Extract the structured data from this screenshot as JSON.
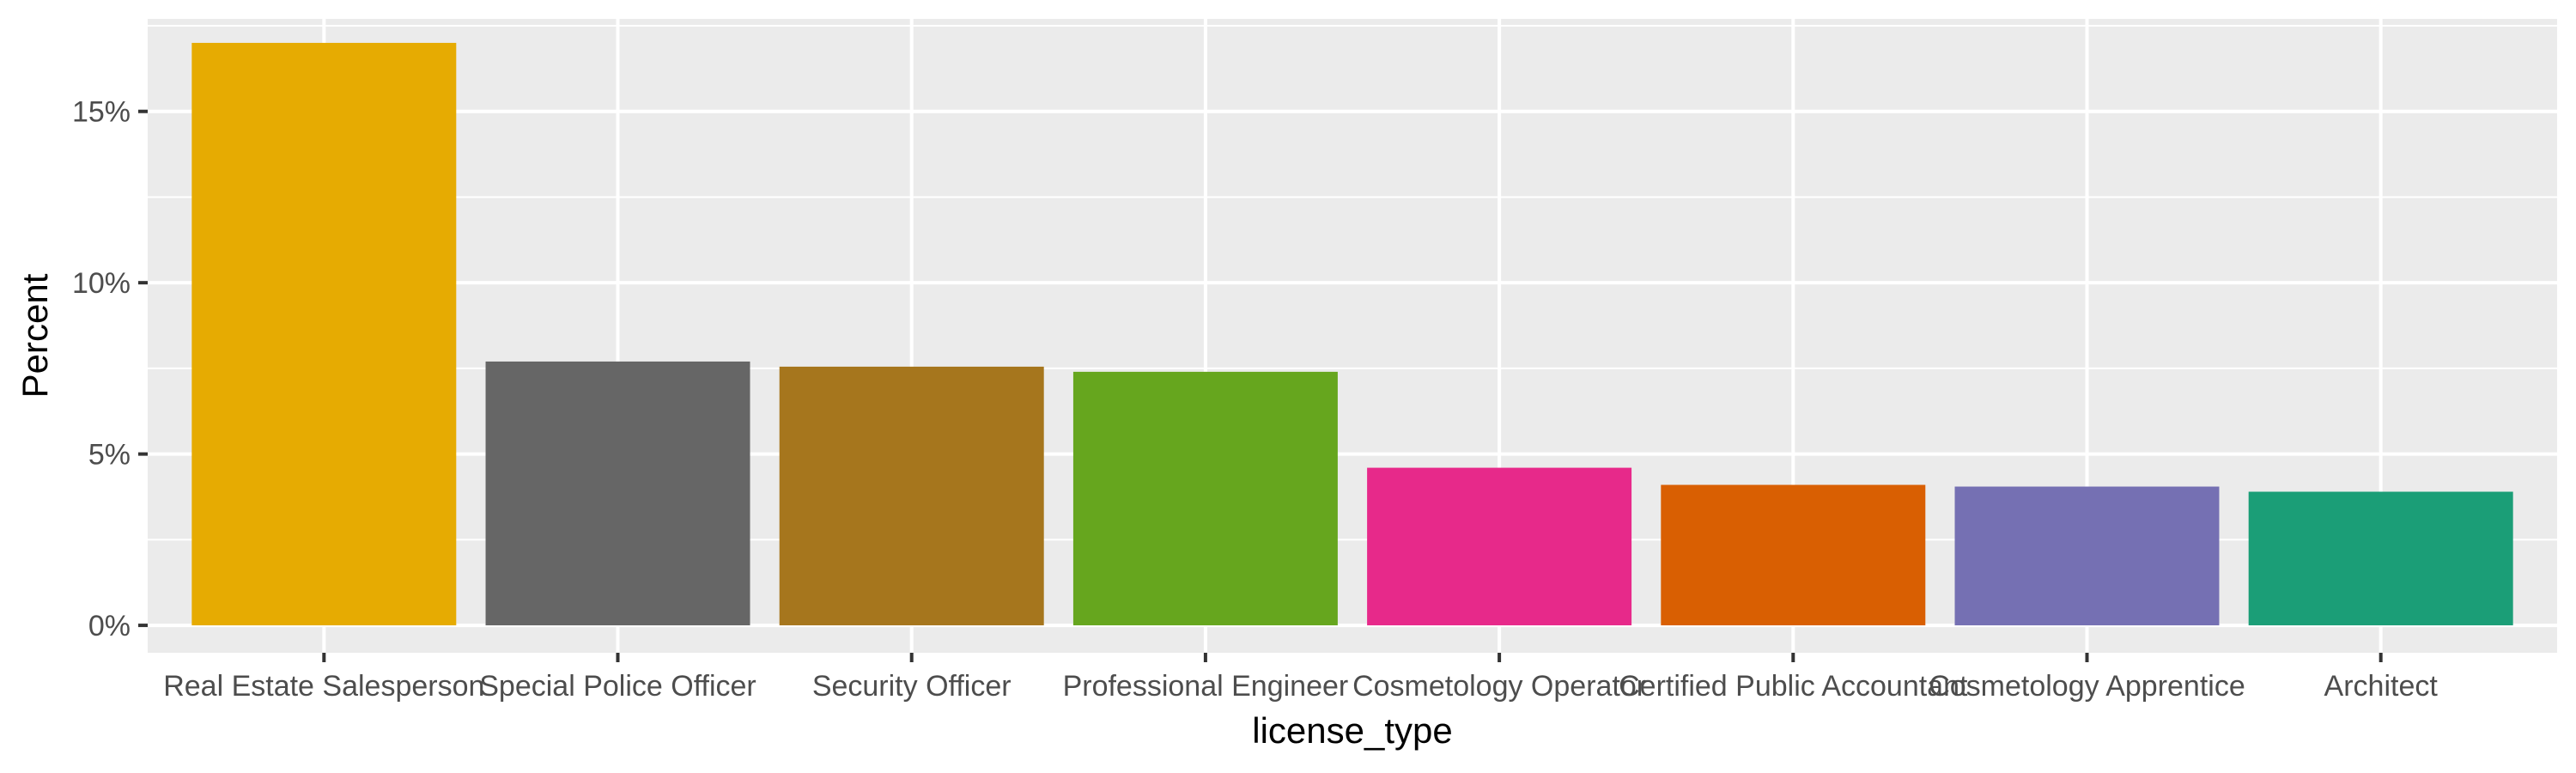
{
  "chart_data": {
    "type": "bar",
    "xlabel": "license_type",
    "ylabel": "Percent",
    "ylim": [
      -0.008,
      0.177
    ],
    "yticks": [
      0,
      0.05,
      0.1,
      0.15
    ],
    "ytick_labels": [
      "0%",
      "5%",
      "10%",
      "15%"
    ],
    "grid": true,
    "legend": "none",
    "categories": [
      "Real Estate Salesperson",
      "Special Police Officer",
      "Security Officer",
      "Professional Engineer",
      "Cosmetology Operator",
      "Certified Public Accountant",
      "Cosmetology Apprentice",
      "Architect"
    ],
    "values": [
      0.17,
      0.077,
      0.0755,
      0.074,
      0.046,
      0.041,
      0.0405,
      0.039
    ],
    "colors": [
      "#E6AB02",
      "#666666",
      "#A6761D",
      "#66A61E",
      "#E7298A",
      "#D95F02",
      "#7570B3",
      "#1B9E77"
    ]
  }
}
